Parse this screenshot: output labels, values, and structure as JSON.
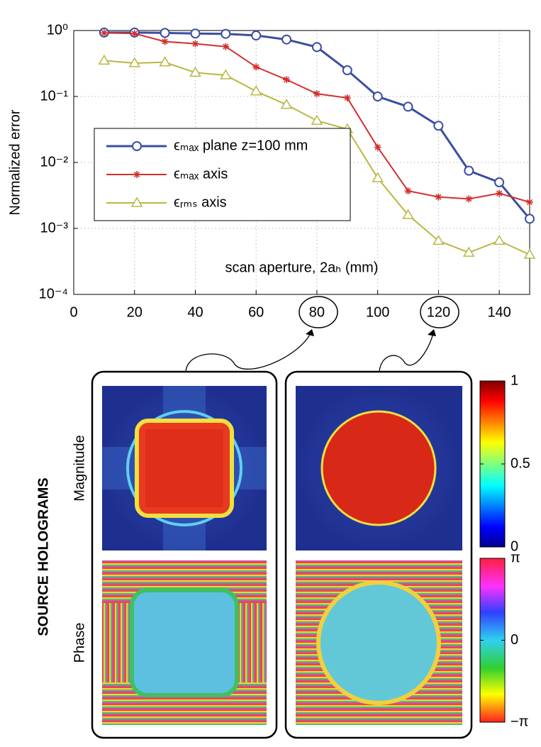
{
  "chart_data": {
    "type": "line",
    "yscale": "log",
    "ylabel": "Normalized error",
    "xlabel": "scan aperture, 2aₕ (mm)",
    "xlim": [
      0,
      150
    ],
    "xticks": [
      0,
      20,
      40,
      60,
      80,
      100,
      120,
      140
    ],
    "ylim": [
      0.0001,
      1
    ],
    "yticks": [
      {
        "value": 0.0001,
        "label": "10⁻⁴"
      },
      {
        "value": 0.001,
        "label": "10⁻³"
      },
      {
        "value": 0.01,
        "label": "10⁻²"
      },
      {
        "value": 0.1,
        "label": "10⁻¹"
      },
      {
        "value": 1,
        "label": "10⁰"
      }
    ],
    "grid": true,
    "legend": "center left",
    "x": [
      10,
      20,
      30,
      40,
      50,
      60,
      70,
      80,
      90,
      100,
      110,
      120,
      130,
      140,
      150
    ],
    "series": [
      {
        "name": "ϵₘₐₓ plane z=100 mm",
        "color": "#3b4ea0",
        "marker": "o",
        "values": [
          0.93,
          0.93,
          0.92,
          0.9,
          0.89,
          0.84,
          0.73,
          0.56,
          0.25,
          0.1,
          0.07,
          0.036,
          0.0075,
          0.005,
          0.0014
        ]
      },
      {
        "name": "ϵₘₐₓ axis",
        "color": "#d2302f",
        "marker": "*",
        "values": [
          0.92,
          0.9,
          0.68,
          0.63,
          0.57,
          0.28,
          0.18,
          0.11,
          0.095,
          0.017,
          0.0037,
          0.003,
          0.0028,
          0.0034,
          0.0025
        ]
      },
      {
        "name": "ϵᵣₘₛ axis",
        "color": "#b9b743",
        "marker": "^",
        "values": [
          0.35,
          0.32,
          0.33,
          0.23,
          0.21,
          0.12,
          0.075,
          0.043,
          0.032,
          0.0058,
          0.0016,
          0.00065,
          0.00043,
          0.00065,
          0.0004
        ]
      }
    ]
  },
  "figure": {
    "title": "SOURCE HOLOGRAMS",
    "rows": [
      "Magnitude",
      "Phase"
    ],
    "magnitude_colorbar": {
      "lim": [
        0,
        1
      ],
      "ticks": [
        0,
        0.5,
        1
      ]
    },
    "phase_colorbar": {
      "lim": [
        -3.14159,
        3.14159
      ],
      "ticks": [
        {
          "value": 3.14159,
          "label": "π"
        },
        {
          "value": 0,
          "label": "0"
        },
        {
          "value": -3.14159,
          "label": "−π"
        }
      ]
    }
  }
}
